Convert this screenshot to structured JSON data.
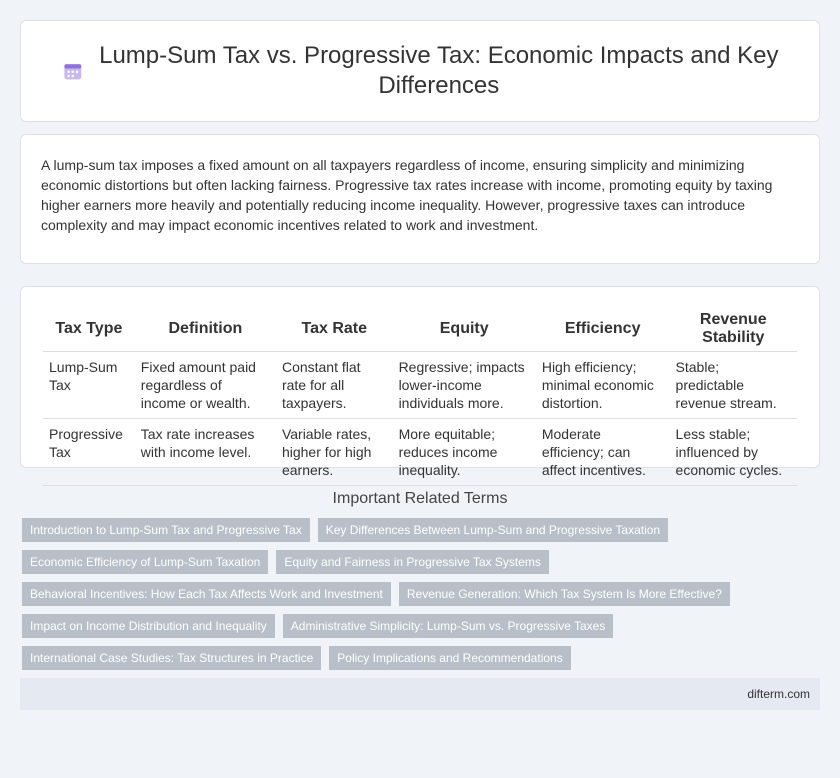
{
  "header": {
    "title": "Lump-Sum Tax vs. Progressive Tax: Economic Impacts and Key Differences"
  },
  "intro": "A lump-sum tax imposes a fixed amount on all taxpayers regardless of income, ensuring simplicity and minimizing economic distortions but often lacking fairness. Progressive tax rates increase with income, promoting equity by taxing higher earners more heavily and potentially reducing income inequality. However, progressive taxes can introduce complexity and may impact economic incentives related to work and investment.",
  "table": {
    "headers": [
      "Tax Type",
      "Definition",
      "Tax Rate",
      "Equity",
      "Efficiency",
      "Revenue Stability"
    ],
    "rows": [
      [
        "Lump-Sum Tax",
        "Fixed amount paid regardless of income or wealth.",
        "Constant flat rate for all taxpayers.",
        "Regressive; impacts lower-income individuals more.",
        "High efficiency; minimal economic distortion.",
        "Stable; predictable revenue stream."
      ],
      [
        "Progressive Tax",
        "Tax rate increases with income level.",
        "Variable rates, higher for high earners.",
        "More equitable; reduces income inequality.",
        "Moderate efficiency; can affect incentives.",
        "Less stable; influenced by economic cycles."
      ]
    ]
  },
  "related": {
    "title": "Important Related Terms",
    "tags": [
      [
        "Introduction to Lump-Sum Tax and Progressive Tax",
        "Key Differences Between Lump-Sum and Progressive Taxation"
      ],
      [
        "Economic Efficiency of Lump-Sum Taxation",
        "Equity and Fairness in Progressive Tax Systems"
      ],
      [
        "Behavioral Incentives: How Each Tax Affects Work and Investment",
        "Revenue Generation: Which Tax System Is More Effective?"
      ],
      [
        "Impact on Income Distribution and Inequality",
        "Administrative Simplicity: Lump-Sum vs. Progressive Taxes"
      ],
      [
        "International Case Studies: Tax Structures in Practice",
        "Policy Implications and Recommendations"
      ]
    ]
  },
  "footer": "difterm.com"
}
